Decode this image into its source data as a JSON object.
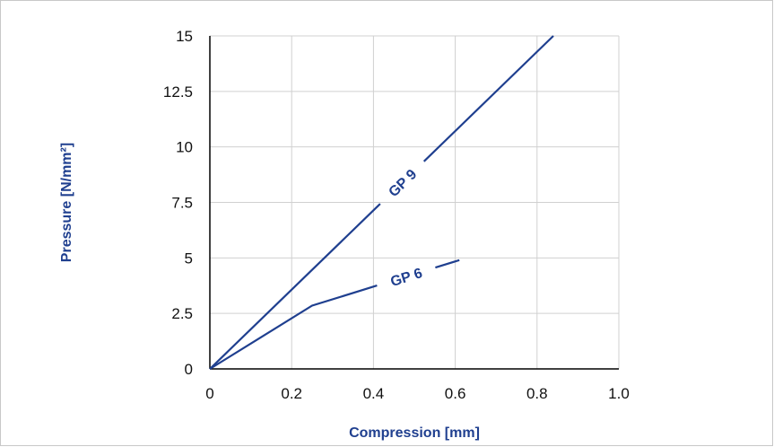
{
  "chart_data": {
    "type": "line",
    "xlabel": "Compression [mm]",
    "ylabel": "Pressure [N/mm²]",
    "xlim": [
      0,
      1.0
    ],
    "ylim": [
      0,
      15
    ],
    "x_ticks": [
      "0",
      "0.2",
      "0.4",
      "0.6",
      "0.8",
      "1.0"
    ],
    "y_ticks": [
      "0",
      "2.5",
      "5",
      "7.5",
      "10",
      "12.5",
      "15"
    ],
    "grid": true,
    "legend": "none",
    "series": [
      {
        "name": "GP 9",
        "color": "#1f3f8f",
        "points": [
          [
            0,
            0
          ],
          [
            0.84,
            15
          ]
        ],
        "label_at": 0.47
      },
      {
        "name": "GP 6",
        "color": "#1f3f8f",
        "points": [
          [
            0,
            0
          ],
          [
            0.25,
            2.85
          ],
          [
            0.61,
            4.9
          ]
        ],
        "label_at": 0.48
      }
    ],
    "colors": {
      "axis_title": "#1f3f8f",
      "grid": "#d0d0d0",
      "axis": "#000000"
    }
  }
}
